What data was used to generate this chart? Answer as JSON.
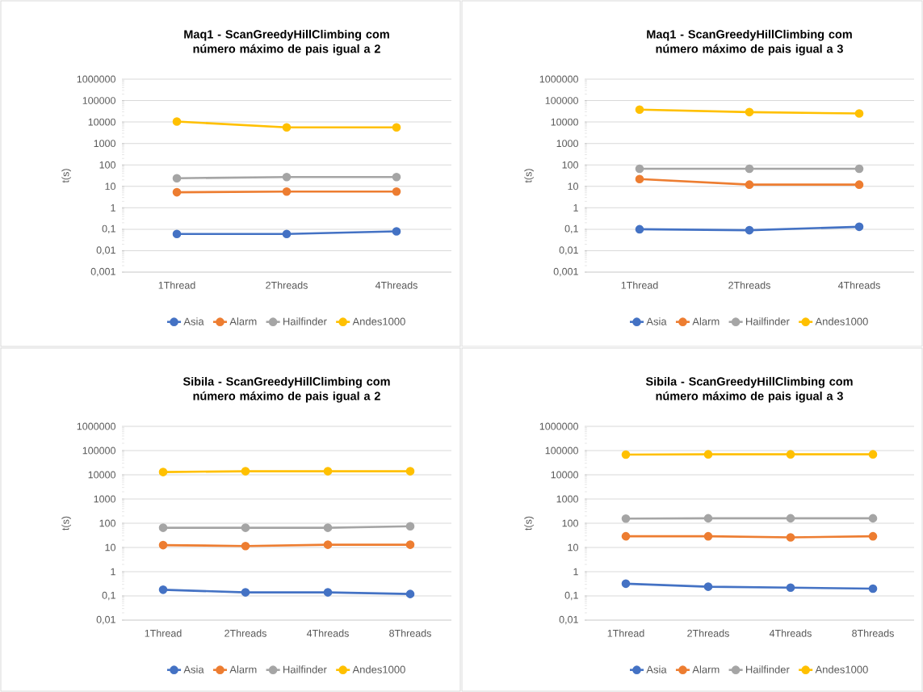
{
  "chart_data": [
    {
      "type": "line",
      "title": "Maq1 - ScanGreedyHillClimbing com número máximo de pais igual a 2",
      "ylabel": "t(s)",
      "categories": [
        "1Thread",
        "2Threads",
        "4Threads"
      ],
      "log": "y",
      "grid": "y",
      "legend": "bottom",
      "marker": "circle",
      "line_style": "solid",
      "ylim": [
        0.001,
        1000000
      ],
      "yticks": [
        {
          "value": 0.001,
          "label": "0,001"
        },
        {
          "value": 0.01,
          "label": "0,01"
        },
        {
          "value": 0.1,
          "label": "0,1"
        },
        1,
        10,
        100,
        1000,
        10000,
        100000,
        1000000
      ],
      "series": [
        {
          "name": "Asia",
          "color": "#4472c4",
          "values": [
            0.06,
            0.06,
            0.08
          ]
        },
        {
          "name": "Alarm",
          "color": "#ed7d31",
          "values": [
            5.3,
            5.7,
            5.7
          ]
        },
        {
          "name": "Hailfinder",
          "color": "#a5a5a5",
          "values": [
            24,
            27,
            27
          ]
        },
        {
          "name": "Andes1000",
          "color": "#ffc000",
          "values": [
            10500,
            5600,
            5600
          ]
        }
      ]
    },
    {
      "type": "line",
      "title": "Maq1 - ScanGreedyHillClimbing com número máximo de pais igual a 3",
      "ylabel": "t(s)",
      "categories": [
        "1Thread",
        "2Threads",
        "4Threads"
      ],
      "log": "y",
      "grid": "y",
      "legend": "bottom",
      "marker": "circle",
      "line_style": "solid",
      "ylim": [
        0.001,
        1000000
      ],
      "yticks": [
        {
          "value": 0.001,
          "label": "0,001"
        },
        {
          "value": 0.01,
          "label": "0,01"
        },
        {
          "value": 0.1,
          "label": "0,1"
        },
        1,
        10,
        100,
        1000,
        10000,
        100000,
        1000000
      ],
      "series": [
        {
          "name": "Asia",
          "color": "#4472c4",
          "values": [
            0.1,
            0.09,
            0.13
          ]
        },
        {
          "name": "Alarm",
          "color": "#ed7d31",
          "values": [
            22,
            12,
            12
          ]
        },
        {
          "name": "Hailfinder",
          "color": "#a5a5a5",
          "values": [
            66,
            66,
            66
          ]
        },
        {
          "name": "Andes1000",
          "color": "#ffc000",
          "values": [
            38000,
            29000,
            25000
          ]
        }
      ]
    },
    {
      "type": "line",
      "title": "Sibila - ScanGreedyHillClimbing com número máximo de pais igual a 2",
      "ylabel": "t(s)",
      "categories": [
        "1Thread",
        "2Threads",
        "4Threads",
        "8Threads"
      ],
      "log": "y",
      "grid": "y",
      "legend": "bottom",
      "marker": "circle",
      "line_style": "solid",
      "ylim": [
        0.01,
        1000000
      ],
      "yticks": [
        {
          "value": 0.01,
          "label": "0,01"
        },
        {
          "value": 0.1,
          "label": "0,1"
        },
        1,
        10,
        100,
        1000,
        10000,
        100000,
        1000000
      ],
      "series": [
        {
          "name": "Asia",
          "color": "#4472c4",
          "values": [
            0.18,
            0.14,
            0.14,
            0.12
          ]
        },
        {
          "name": "Alarm",
          "color": "#ed7d31",
          "values": [
            12.5,
            11.5,
            13,
            13
          ]
        },
        {
          "name": "Hailfinder",
          "color": "#a5a5a5",
          "values": [
            65,
            65,
            65,
            75
          ]
        },
        {
          "name": "Andes1000",
          "color": "#ffc000",
          "values": [
            13000,
            14000,
            14000,
            14000
          ]
        }
      ]
    },
    {
      "type": "line",
      "title": "Sibila - ScanGreedyHillClimbing com número máximo de pais igual a 3",
      "ylabel": "t(s)",
      "categories": [
        "1Thread",
        "2Threads",
        "4Threads",
        "8Threads"
      ],
      "log": "y",
      "grid": "y",
      "legend": "bottom",
      "marker": "circle",
      "line_style": "solid",
      "ylim": [
        0.01,
        1000000
      ],
      "yticks": [
        {
          "value": 0.01,
          "label": "0,01"
        },
        {
          "value": 0.1,
          "label": "0,1"
        },
        1,
        10,
        100,
        1000,
        10000,
        100000,
        1000000
      ],
      "series": [
        {
          "name": "Asia",
          "color": "#4472c4",
          "values": [
            0.32,
            0.24,
            0.22,
            0.2
          ]
        },
        {
          "name": "Alarm",
          "color": "#ed7d31",
          "values": [
            29,
            29,
            26,
            29
          ]
        },
        {
          "name": "Hailfinder",
          "color": "#a5a5a5",
          "values": [
            155,
            160,
            160,
            160
          ]
        },
        {
          "name": "Andes1000",
          "color": "#ffc000",
          "values": [
            68000,
            70000,
            70000,
            70000
          ]
        }
      ]
    }
  ]
}
